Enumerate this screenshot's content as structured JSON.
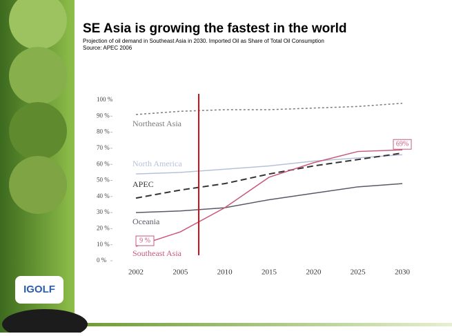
{
  "logo": "IGOLF",
  "chart_data": {
    "type": "line",
    "title": "SE Asia is growing the fastest in the world",
    "subtitle": "Projection of oil demand in Southeast Asia in 2030. Imported Oil as Share of Total Oil Consumption",
    "source": "Source: APEC 2006",
    "categories": [
      "2002",
      "2005",
      "2010",
      "2015",
      "2020",
      "2025",
      "2030"
    ],
    "ylim": [
      0,
      100
    ],
    "yticks": [
      {
        "value": 0,
        "label": "0 %"
      },
      {
        "value": 10,
        "label": "10 %"
      },
      {
        "value": 20,
        "label": "20 %"
      },
      {
        "value": 30,
        "label": "30 %"
      },
      {
        "value": 40,
        "label": "40 %"
      },
      {
        "value": 50,
        "label": "50 %"
      },
      {
        "value": 60,
        "label": "60 %"
      },
      {
        "value": 70,
        "label": "70 %"
      },
      {
        "value": 80,
        "label": "80 %"
      },
      {
        "value": 90,
        "label": "90 %"
      },
      {
        "value": 100,
        "label": "100 %"
      }
    ],
    "series": [
      {
        "name": "Northeast Asia",
        "color": "#7a7a7a",
        "values": [
          91,
          93,
          94,
          94,
          95,
          96,
          98
        ]
      },
      {
        "name": "North America",
        "color": "#b4c2d8",
        "values": [
          54,
          55,
          57,
          59,
          62,
          64,
          66
        ]
      },
      {
        "name": "APEC",
        "color": "#333333",
        "values": [
          39,
          44,
          48,
          54,
          59,
          63,
          67
        ]
      },
      {
        "name": "Oceania",
        "color": "#555a66",
        "values": [
          30,
          31,
          33,
          38,
          42,
          46,
          48
        ]
      },
      {
        "name": "Southeast Asia",
        "color": "#c8587a",
        "values": [
          9,
          18,
          33,
          52,
          61,
          68,
          69
        ],
        "value_labels": [
          "9 %",
          null,
          null,
          null,
          null,
          null,
          "69%"
        ]
      }
    ]
  }
}
